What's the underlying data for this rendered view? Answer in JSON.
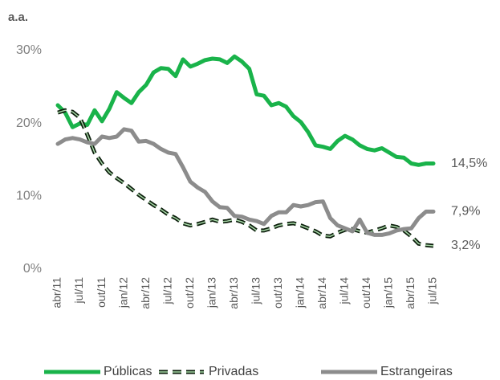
{
  "chart_data": {
    "type": "line",
    "title": "a.a.",
    "categories": [
      "abr/11",
      null,
      null,
      "jul/11",
      null,
      null,
      "out/11",
      null,
      null,
      "jan/12",
      null,
      null,
      "abr/12",
      null,
      null,
      "jul/12",
      null,
      null,
      "out/12",
      null,
      null,
      "jan/13",
      null,
      null,
      "abr/13",
      null,
      null,
      "jul/13",
      null,
      null,
      "out/13",
      null,
      null,
      "jan/14",
      null,
      null,
      "abr/14",
      null,
      null,
      "jul/14",
      null,
      null,
      "out/14",
      null,
      null,
      "jan/15",
      null,
      null,
      "abr/15",
      null,
      null,
      "jul/15"
    ],
    "ylim": [
      0,
      30
    ],
    "yticks": [
      {
        "value": 0,
        "label": "0%"
      },
      {
        "value": 10,
        "label": "10%"
      },
      {
        "value": 20,
        "label": "20%"
      },
      {
        "value": 30,
        "label": "30%"
      }
    ],
    "grid": false,
    "legend": "bottom",
    "series": [
      {
        "name": "Públicas",
        "color": "#19b34a",
        "line_style": "solid",
        "values": [
          22.5,
          21.5,
          19.5,
          20,
          19.8,
          21.8,
          20.3,
          22,
          24.3,
          23.5,
          22.8,
          24.3,
          25.3,
          27,
          27.6,
          27.5,
          26.5,
          28.8,
          27.8,
          28.2,
          28.7,
          28.9,
          28.8,
          28.3,
          29.2,
          28.5,
          27.5,
          24,
          23.8,
          22.5,
          22.8,
          22.3,
          21,
          20.2,
          18.8,
          17,
          16.8,
          16.5,
          17.6,
          18.3,
          17.8,
          17,
          16.5,
          16.3,
          16.6,
          16,
          15.4,
          15.3,
          14.5,
          14.3,
          14.5,
          14.5
        ],
        "value_labels": [
          null,
          null,
          null,
          null,
          null,
          null,
          null,
          null,
          null,
          null,
          null,
          null,
          null,
          null,
          null,
          null,
          null,
          null,
          null,
          null,
          null,
          null,
          null,
          null,
          null,
          null,
          null,
          null,
          null,
          null,
          null,
          null,
          null,
          null,
          null,
          null,
          null,
          null,
          null,
          null,
          null,
          null,
          null,
          null,
          null,
          null,
          null,
          null,
          null,
          null,
          null,
          "14,5%"
        ]
      },
      {
        "name": "Privadas",
        "color": "#0d1f0d",
        "line_style": "dashed",
        "values": [
          21.5,
          21.8,
          21.6,
          20.8,
          18.5,
          16,
          14.5,
          13.3,
          12.5,
          11.8,
          11,
          10.2,
          9.5,
          8.8,
          8.2,
          7.5,
          7,
          6.3,
          6,
          6.2,
          6.5,
          6.8,
          6.5,
          6.6,
          6.8,
          6.5,
          6,
          5.3,
          5.3,
          5.6,
          6,
          6.2,
          6.3,
          6,
          5.6,
          5.2,
          4.6,
          4.5,
          5,
          5.4,
          5.5,
          5.2,
          5,
          5.3,
          5.6,
          6,
          5.8,
          5.3,
          4.5,
          3.5,
          3.3,
          3.2
        ],
        "value_labels": [
          null,
          null,
          null,
          null,
          null,
          null,
          null,
          null,
          null,
          null,
          null,
          null,
          null,
          null,
          null,
          null,
          null,
          null,
          null,
          null,
          null,
          null,
          null,
          null,
          null,
          null,
          null,
          null,
          null,
          null,
          null,
          null,
          null,
          null,
          null,
          null,
          null,
          null,
          null,
          null,
          null,
          null,
          null,
          null,
          null,
          null,
          null,
          null,
          null,
          null,
          null,
          "3,2%"
        ]
      },
      {
        "name": "Estrangeiras",
        "color": "#8c8c8c",
        "line_style": "solid",
        "values": [
          17.2,
          17.8,
          18,
          17.8,
          17.4,
          17.2,
          18.2,
          18,
          18.2,
          19.2,
          19,
          17.5,
          17.6,
          17.2,
          16.5,
          16,
          15.8,
          14,
          12,
          11.2,
          10.6,
          9.3,
          8.5,
          8.4,
          7.3,
          7.2,
          6.8,
          6.6,
          6.2,
          7.3,
          7.8,
          7.8,
          8.8,
          8.6,
          8.8,
          9.2,
          9.3,
          7,
          6,
          5.6,
          5.2,
          6.8,
          5,
          4.7,
          4.7,
          4.9,
          5.3,
          5.5,
          5.6,
          7,
          7.9,
          7.9
        ],
        "value_labels": [
          null,
          null,
          null,
          null,
          null,
          null,
          null,
          null,
          null,
          null,
          null,
          null,
          null,
          null,
          null,
          null,
          null,
          null,
          null,
          null,
          null,
          null,
          null,
          null,
          null,
          null,
          null,
          null,
          null,
          null,
          null,
          null,
          null,
          null,
          null,
          null,
          null,
          null,
          null,
          null,
          null,
          null,
          null,
          null,
          null,
          null,
          null,
          null,
          null,
          null,
          null,
          "7,9%"
        ]
      }
    ]
  }
}
